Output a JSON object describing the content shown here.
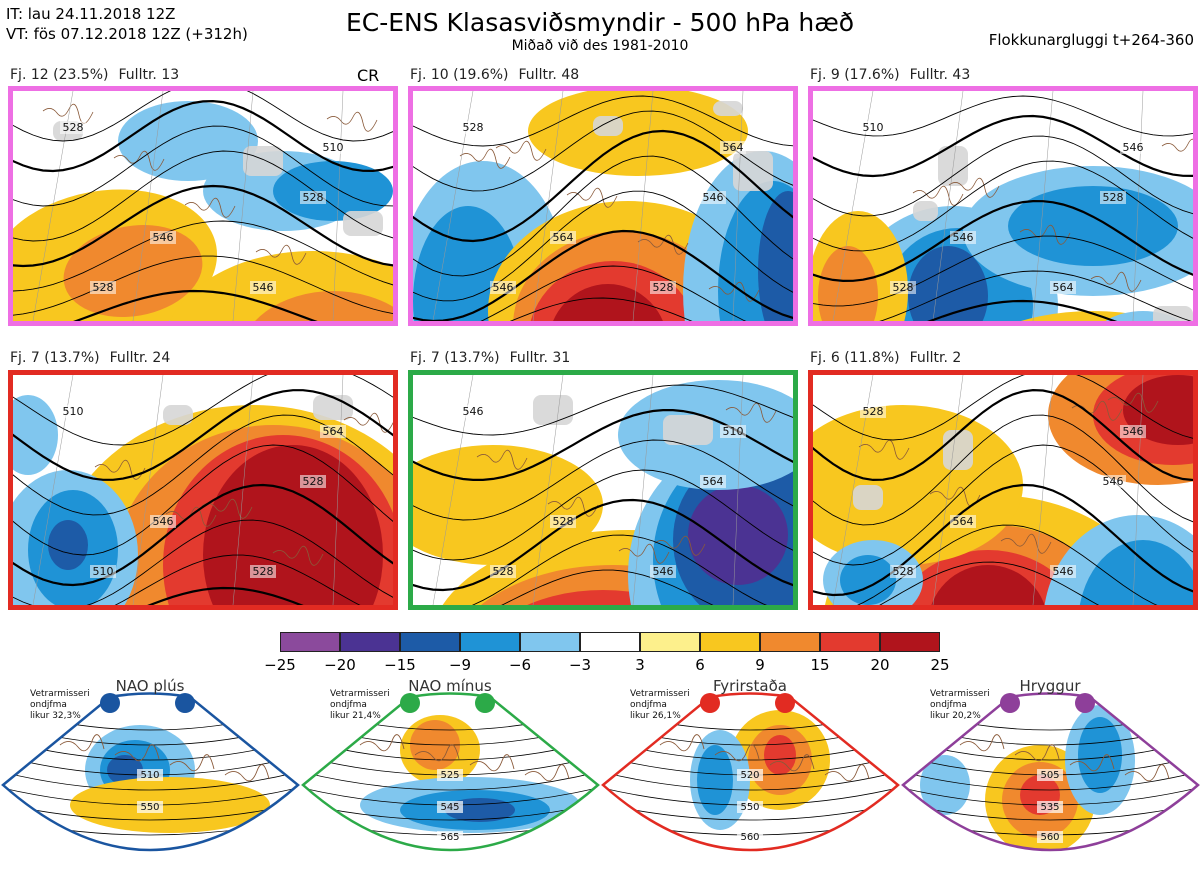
{
  "header": {
    "it_line": "IT: lau 24.11.2018 12Z",
    "vt_line": "VT: fös 07.12.2018 12Z  (+312h)",
    "title": "EC-ENS Klasasviðsmyndir - 500 hPa hæð",
    "subtitle": "Miðað við des 1981-2010",
    "window": "Flokkunargluggi t+264-360",
    "cr": "CR"
  },
  "colors": {
    "pink": "#ee6fe4",
    "red": "#e22b22",
    "green": "#2caa48",
    "blue": "#1a55a0",
    "purple": "#8e3f9a"
  },
  "chart_data": {
    "type": "heatmap",
    "title": "EC-ENS Klasasviðsmyndir - 500 hPa hæð",
    "variable": "500 hPa height anomaly",
    "colorbar": {
      "ticks": [
        "−25",
        "−20",
        "−15",
        "−9",
        "−6",
        "−3",
        "3",
        "6",
        "9",
        "15",
        "20",
        "25"
      ],
      "boundaries": [
        -25,
        -20,
        -15,
        -9,
        -6,
        -3,
        3,
        6,
        9,
        15,
        20,
        25
      ],
      "colors": [
        "#8b4a9c",
        "#4b3393",
        "#1d5ba7",
        "#1f93d6",
        "#80c6ee",
        "#ffffff",
        "#fdf08c",
        "#f8c71f",
        "#f0892e",
        "#e33a2f",
        "#b0141c"
      ]
    },
    "clusters": [
      {
        "fj": "Fj. 12 (23.5%)",
        "fulltr": "Fulltr. 13",
        "frame": "pink",
        "contours": [
          "528",
          "528",
          "546",
          "528",
          "546",
          "510"
        ]
      },
      {
        "fj": "Fj. 10 (19.6%)",
        "fulltr": "Fulltr. 48",
        "frame": "pink",
        "contours": [
          "528",
          "546",
          "564",
          "546",
          "528",
          "564"
        ]
      },
      {
        "fj": "Fj. 9 (17.6%)",
        "fulltr": "Fulltr. 43",
        "frame": "pink",
        "contours": [
          "510",
          "528",
          "546",
          "528",
          "564",
          "546"
        ]
      },
      {
        "fj": "Fj. 7 (13.7%)",
        "fulltr": "Fulltr. 24",
        "frame": "red",
        "contours": [
          "510",
          "528",
          "546",
          "510",
          "528",
          "564"
        ]
      },
      {
        "fj": "Fj. 7 (13.7%)",
        "fulltr": "Fulltr. 31",
        "frame": "green",
        "contours": [
          "546",
          "564",
          "528",
          "528",
          "546",
          "510"
        ]
      },
      {
        "fj": "Fj. 6 (11.8%)",
        "fulltr": "Fulltr. 2",
        "frame": "red",
        "contours": [
          "528",
          "546",
          "564",
          "528",
          "546",
          "546"
        ]
      }
    ],
    "regimes": [
      {
        "name": "NAO plús",
        "info": [
          "Vetrarmisseri",
          "ondjfma",
          "likur 32,3%"
        ],
        "color": "blue",
        "contours": [
          "510",
          "550"
        ]
      },
      {
        "name": "NAO mínus",
        "info": [
          "Vetrarmisseri",
          "ondjfma",
          "likur 21,4%"
        ],
        "color": "green",
        "contours": [
          "525",
          "545",
          "565"
        ]
      },
      {
        "name": "Fyrirstaða",
        "info": [
          "Vetrarmisseri",
          "ondjfma",
          "likur 26,1%"
        ],
        "color": "red",
        "contours": [
          "520",
          "550",
          "560"
        ]
      },
      {
        "name": "Hryggur",
        "info": [
          "Vetrarmisseri",
          "ondjfma",
          "likur 20,2%"
        ],
        "color": "purple",
        "contours": [
          "505",
          "535",
          "560"
        ]
      }
    ]
  }
}
